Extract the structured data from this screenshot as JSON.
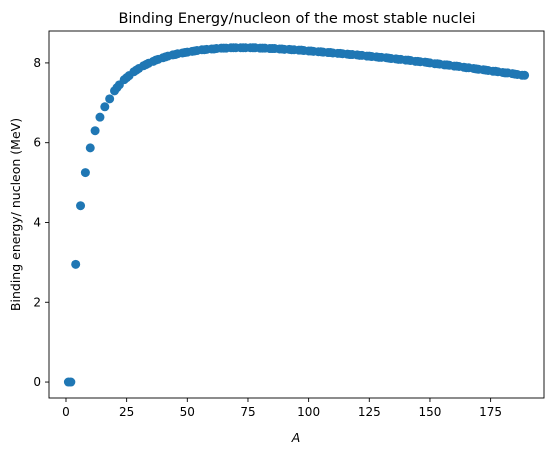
{
  "chart_data": {
    "type": "scatter",
    "title": "Binding Energy/nucleon of the most stable nuclei",
    "xlabel": "A",
    "ylabel": "Binding energy/ nucleon (MeV)",
    "xlim": [
      -7,
      197
    ],
    "ylim": [
      -0.4,
      8.8
    ],
    "xticks": [
      0,
      25,
      50,
      75,
      100,
      125,
      150,
      175
    ],
    "xtick_labels": [
      "0",
      "25",
      "50",
      "75",
      "100",
      "125",
      "150",
      "175"
    ],
    "yticks": [
      0,
      2,
      4,
      6,
      8
    ],
    "ytick_labels": [
      "0",
      "2",
      "4",
      "6",
      "8"
    ],
    "grid": false,
    "marker_color": "#1f77b4",
    "series": [
      {
        "x": [
          1,
          2,
          4,
          6,
          8,
          10,
          12,
          14,
          16,
          18,
          20,
          21,
          22,
          24,
          25,
          26,
          28,
          29,
          30,
          32,
          33,
          34,
          36,
          37,
          38,
          40,
          41,
          42,
          44,
          45,
          46,
          48,
          49,
          50,
          52,
          53,
          54,
          56,
          57,
          58,
          60,
          61,
          62,
          64,
          65,
          66,
          68,
          69,
          70,
          72,
          73,
          74,
          76,
          77,
          78,
          80,
          81,
          82,
          84,
          85,
          86,
          88,
          89,
          90,
          92,
          93,
          94,
          96,
          97,
          98,
          100,
          101,
          102,
          104,
          105,
          106,
          108,
          109,
          110,
          112,
          113,
          114,
          116,
          117,
          118,
          120,
          121,
          122,
          124,
          125,
          126,
          128,
          129,
          130,
          132,
          133,
          134,
          136,
          137,
          138,
          140,
          141,
          142,
          144,
          145,
          146,
          148,
          149,
          150,
          152,
          153,
          154,
          156,
          157,
          158,
          160,
          161,
          162,
          164,
          165,
          166,
          168,
          169,
          170,
          172,
          173,
          174,
          176,
          177,
          178,
          180,
          181,
          182,
          184,
          185,
          186,
          188,
          189
        ],
        "y": [
          0.0,
          0.0,
          2.95,
          4.42,
          5.25,
          5.87,
          6.3,
          6.64,
          6.9,
          7.1,
          7.3,
          7.38,
          7.45,
          7.58,
          7.63,
          7.68,
          7.78,
          7.82,
          7.86,
          7.93,
          7.96,
          7.99,
          8.04,
          8.07,
          8.09,
          8.13,
          8.15,
          8.17,
          8.2,
          8.21,
          8.23,
          8.25,
          8.26,
          8.27,
          8.29,
          8.3,
          8.31,
          8.33,
          8.33,
          8.34,
          8.35,
          8.35,
          8.36,
          8.37,
          8.37,
          8.37,
          8.38,
          8.38,
          8.38,
          8.38,
          8.38,
          8.38,
          8.38,
          8.38,
          8.38,
          8.37,
          8.37,
          8.37,
          8.36,
          8.36,
          8.36,
          8.35,
          8.35,
          8.34,
          8.34,
          8.33,
          8.33,
          8.32,
          8.32,
          8.31,
          8.3,
          8.3,
          8.29,
          8.28,
          8.28,
          8.27,
          8.26,
          8.26,
          8.25,
          8.24,
          8.24,
          8.23,
          8.22,
          8.21,
          8.21,
          8.2,
          8.19,
          8.19,
          8.17,
          8.17,
          8.16,
          8.15,
          8.14,
          8.14,
          8.13,
          8.12,
          8.11,
          8.1,
          8.09,
          8.09,
          8.07,
          8.07,
          8.06,
          8.04,
          8.04,
          8.03,
          8.02,
          8.01,
          8.0,
          7.98,
          7.98,
          7.97,
          7.95,
          7.95,
          7.94,
          7.92,
          7.92,
          7.91,
          7.89,
          7.88,
          7.88,
          7.86,
          7.85,
          7.84,
          7.83,
          7.82,
          7.81,
          7.79,
          7.79,
          7.78,
          7.76,
          7.75,
          7.75,
          7.73,
          7.72,
          7.71,
          7.69,
          7.69
        ]
      }
    ]
  }
}
